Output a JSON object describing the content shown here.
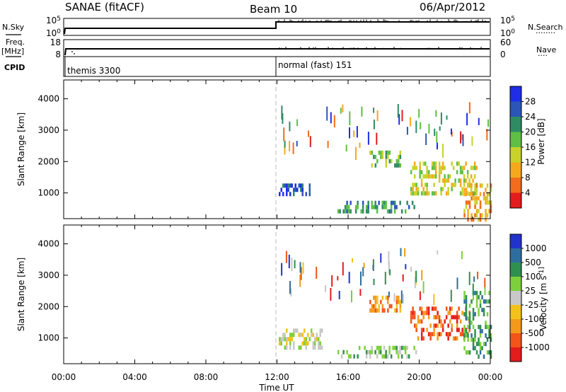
{
  "header": {
    "title_left": "SANAE (fitACF)",
    "title_center": "Beam 10",
    "title_right": "06/Apr/2012"
  },
  "summary": {
    "nsky_label": "N.Sky",
    "nsearch_label": "N.Search",
    "nsearch_dots": "········",
    "freq_label_1": "Freq.",
    "freq_label_2": "[MHz]",
    "nave_label": "Nave",
    "nave_dots": "····",
    "cpid_label": "CPID",
    "count_ticks": [
      "10^5",
      "10^0"
    ],
    "count_ticks_right": [
      "10^5",
      "10^0"
    ],
    "freq_ticks": [
      "18",
      "8"
    ],
    "nave_ticks": [
      "60",
      "0"
    ],
    "cpid_segments": [
      {
        "start_hour": 0,
        "label": "themis 3300"
      },
      {
        "start_hour": 12,
        "label": "normal (fast) 151"
      }
    ]
  },
  "chart_data": [
    {
      "type": "heatmap",
      "parameter": "power",
      "ylabel": "Slant Range [km]",
      "xlabel": "Time UT",
      "xlim_hours": [
        0,
        24
      ],
      "ylim": [
        180,
        4600
      ],
      "yticks": [
        1000,
        2000,
        3000,
        4000
      ],
      "xticks": [
        "00:00",
        "04:00",
        "08:00",
        "12:00",
        "16:00",
        "20:00",
        "00:00"
      ],
      "colorbar": {
        "label": "Power [dB]",
        "ticks": [
          "4",
          "8",
          "12",
          "16",
          "20",
          "24",
          "28"
        ],
        "colors": [
          "#1f2ee6",
          "#2b56b8",
          "#2e8b64",
          "#5fbf44",
          "#c8d22a",
          "#f6a81c",
          "#f26c1c",
          "#e31c1c"
        ]
      },
      "echo_regions": [
        {
          "from_hour": 12.1,
          "to_hour": 13.8,
          "min_km": 1000,
          "max_km": 1300,
          "level": 1
        },
        {
          "from_hour": 15.4,
          "to_hour": 19.8,
          "min_km": 430,
          "max_km": 750,
          "level": 2
        },
        {
          "from_hour": 17.2,
          "to_hour": 18.9,
          "min_km": 1850,
          "max_km": 2350,
          "level": 3
        },
        {
          "from_hour": 19.5,
          "to_hour": 23.2,
          "min_km": 950,
          "max_km": 2000,
          "level": 4
        },
        {
          "from_hour": 22.5,
          "to_hour": 24.0,
          "min_km": 180,
          "max_km": 1300,
          "level": 5
        }
      ]
    },
    {
      "type": "heatmap",
      "parameter": "velocity",
      "ylabel": "Slant Range [km]",
      "xlabel": "Time UT",
      "xlim_hours": [
        0,
        24
      ],
      "ylim": [
        180,
        4600
      ],
      "yticks": [
        1000,
        2000,
        3000,
        4000
      ],
      "xticks": [
        "00:00",
        "04:00",
        "08:00",
        "12:00",
        "16:00",
        "20:00",
        "00:00"
      ],
      "colorbar": {
        "label": "Velocity [m s^-1]",
        "ticks": [
          "1000",
          "500",
          "100",
          "25",
          "-25",
          "-100",
          "-500",
          "-1000"
        ],
        "colors": [
          "#2233cc",
          "#2e6e9e",
          "#2f8f4f",
          "#7ecf3c",
          "#c8c8c8",
          "#f2c21a",
          "#f39a1a",
          "#f2541a",
          "#e31c1c"
        ]
      },
      "echo_regions": [
        {
          "from_hour": 12.1,
          "to_hour": 14.5,
          "min_km": 700,
          "max_km": 1300,
          "level": 4
        },
        {
          "from_hour": 15.4,
          "to_hour": 19.8,
          "min_km": 380,
          "max_km": 750,
          "level": 3
        },
        {
          "from_hour": 17.2,
          "to_hour": 18.9,
          "min_km": 1850,
          "max_km": 2350,
          "level": 6
        },
        {
          "from_hour": 19.5,
          "to_hour": 22.8,
          "min_km": 1000,
          "max_km": 2000,
          "level": 7
        },
        {
          "from_hour": 22.5,
          "to_hour": 24.0,
          "min_km": 400,
          "max_km": 2500,
          "level": 2
        }
      ]
    }
  ]
}
